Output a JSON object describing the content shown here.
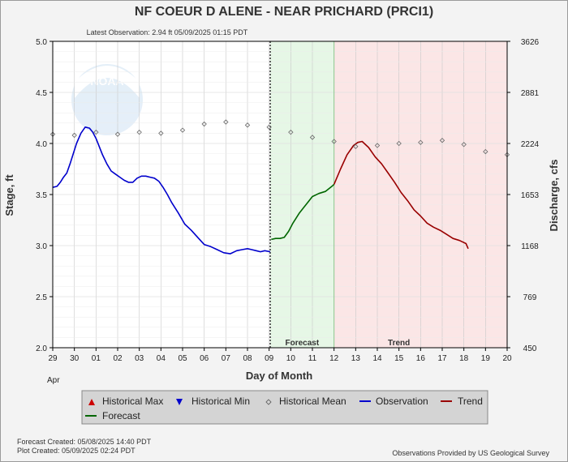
{
  "chart_data": {
    "type": "line",
    "title": "NF COEUR D ALENE - NEAR PRICHARD  (PRCI1)",
    "subtitle": "Latest Observation: 2.94 ft 05/09/2025 01:15 PDT",
    "xlabel": "Day of Month",
    "ylabel_left": "Stage, ft",
    "ylabel_right": "Discharge, cfs",
    "month_label": "Apr",
    "x_tick_labels": [
      "29",
      "30",
      "01",
      "02",
      "03",
      "04",
      "05",
      "06",
      "07",
      "08",
      "09",
      "10",
      "11",
      "12",
      "13",
      "14",
      "15",
      "16",
      "17",
      "18",
      "19",
      "20"
    ],
    "xlim_days": [
      0,
      21
    ],
    "ylim": [
      2.0,
      5.0
    ],
    "y_ticks": [
      "2.0",
      "2.5",
      "3.0",
      "3.5",
      "4.0",
      "4.5",
      "5.0"
    ],
    "y_tick_values": [
      2.0,
      2.5,
      3.0,
      3.5,
      4.0,
      4.5,
      5.0
    ],
    "y2_ticks": [
      "450",
      "769",
      "1168",
      "1653",
      "2224",
      "2881",
      "3626"
    ],
    "grid": true,
    "observation_end_day": 10.05,
    "forecast_band_days": [
      10.05,
      13.0
    ],
    "trend_band_days": [
      13.0,
      21.0
    ],
    "band_labels": {
      "forecast": "Forecast",
      "trend": "Trend"
    },
    "colors": {
      "observation": "#0000cc",
      "forecast": "#006600",
      "trend": "#990000",
      "forecast_band": "#e6f7e6",
      "trend_band": "#fbe6e6",
      "historical_max": "#cc0000",
      "historical_min": "#0000cc"
    },
    "series": [
      {
        "name": "Observation",
        "x": [
          0.0,
          0.2,
          0.35,
          0.5,
          0.65,
          0.8,
          0.95,
          1.1,
          1.3,
          1.5,
          1.7,
          1.85,
          2.0,
          2.15,
          2.3,
          2.5,
          2.7,
          2.9,
          3.1,
          3.3,
          3.5,
          3.7,
          3.9,
          4.1,
          4.3,
          4.5,
          4.7,
          4.9,
          5.1,
          5.3,
          5.5,
          5.8,
          6.1,
          6.4,
          6.7,
          7.0,
          7.3,
          7.6,
          7.9,
          8.2,
          8.5,
          8.75,
          9.0,
          9.2,
          9.4,
          9.6,
          9.8,
          10.05
        ],
        "y": [
          3.57,
          3.58,
          3.62,
          3.67,
          3.71,
          3.8,
          3.9,
          4.0,
          4.1,
          4.16,
          4.15,
          4.11,
          4.05,
          3.97,
          3.89,
          3.8,
          3.73,
          3.7,
          3.67,
          3.64,
          3.62,
          3.62,
          3.66,
          3.68,
          3.68,
          3.67,
          3.66,
          3.63,
          3.57,
          3.5,
          3.42,
          3.32,
          3.21,
          3.15,
          3.08,
          3.01,
          2.99,
          2.96,
          2.93,
          2.92,
          2.95,
          2.96,
          2.97,
          2.96,
          2.95,
          2.94,
          2.95,
          2.94
        ]
      },
      {
        "name": "Forecast",
        "x": [
          10.1,
          10.3,
          10.5,
          10.7,
          10.9,
          11.1,
          11.4,
          11.7,
          12.0,
          12.3,
          12.6,
          12.9,
          13.0
        ],
        "y": [
          3.06,
          3.07,
          3.07,
          3.08,
          3.14,
          3.22,
          3.32,
          3.4,
          3.48,
          3.51,
          3.53,
          3.58,
          3.6
        ]
      },
      {
        "name": "Trend",
        "x": [
          13.0,
          13.3,
          13.6,
          13.9,
          14.1,
          14.3,
          14.6,
          14.9,
          15.2,
          15.5,
          15.8,
          16.1,
          16.4,
          16.7,
          17.0,
          17.3,
          17.6,
          17.9,
          18.2,
          18.5,
          18.8,
          19.1,
          19.2
        ],
        "y": [
          3.6,
          3.75,
          3.89,
          3.98,
          4.01,
          4.02,
          3.96,
          3.87,
          3.8,
          3.71,
          3.62,
          3.52,
          3.44,
          3.35,
          3.29,
          3.22,
          3.18,
          3.15,
          3.11,
          3.07,
          3.05,
          3.02,
          2.97
        ]
      },
      {
        "name": "Historical Mean",
        "x": [
          0.0,
          1.0,
          2.0,
          3.0,
          4.0,
          5.0,
          6.0,
          7.0,
          8.0,
          9.0,
          10.0,
          11.0,
          12.0,
          13.0,
          14.0,
          15.0,
          16.0,
          17.0,
          18.0,
          19.0,
          20.0,
          21.0
        ],
        "y": [
          4.09,
          4.08,
          4.11,
          4.09,
          4.11,
          4.1,
          4.13,
          4.19,
          4.21,
          4.18,
          4.16,
          4.11,
          4.06,
          4.02,
          3.97,
          3.98,
          4.0,
          4.01,
          4.03,
          3.99,
          3.92,
          3.89
        ]
      }
    ],
    "legend": {
      "placement": "bottom",
      "entries": [
        {
          "name": "Historical Max",
          "symbol": "triangle-up"
        },
        {
          "name": "Historical Min",
          "symbol": "triangle-down"
        },
        {
          "name": "Historical Mean",
          "symbol": "diamond"
        },
        {
          "name": "Observation",
          "symbol": "line"
        },
        {
          "name": "Trend",
          "symbol": "line"
        },
        {
          "name": "Forecast",
          "symbol": "line"
        }
      ]
    },
    "footer": {
      "forecast_created": "Forecast Created: 05/08/2025 14:40 PDT",
      "plot_created": "Plot Created: 05/09/2025 02:24 PDT",
      "provider": "Observations Provided by US Geological Survey"
    },
    "logo_text": "NOAA"
  }
}
